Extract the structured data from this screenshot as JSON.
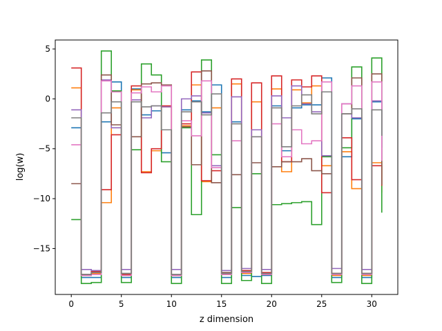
{
  "chart_data": {
    "type": "line",
    "step": "post",
    "title": "",
    "xlabel": "z dimension",
    "ylabel": "log(w)",
    "xlim": [
      -1.6,
      32.6
    ],
    "ylim": [
      -19.6,
      5.9
    ],
    "xticks": [
      0,
      5,
      10,
      15,
      20,
      25,
      30
    ],
    "yticks": [
      5,
      0,
      -5,
      -10,
      -15
    ],
    "legend": "none",
    "grid": false,
    "x": [
      0,
      1,
      2,
      3,
      4,
      5,
      6,
      7,
      8,
      9,
      10,
      11,
      12,
      13,
      14,
      15,
      16,
      17,
      18,
      19,
      20,
      21,
      22,
      23,
      24,
      25,
      26,
      27,
      28,
      29,
      30,
      31
    ],
    "series": [
      {
        "color": "#1f77b4",
        "values": [
          -2.9,
          -17.9,
          -17.9,
          -2.3,
          1.7,
          -17.9,
          1.0,
          -1.6,
          -1.2,
          -5.4,
          -17.9,
          -1.1,
          -0.2,
          -1.3,
          1.4,
          -17.9,
          -2.3,
          -17.7,
          -17.8,
          -17.7,
          -0.7,
          -5.2,
          -0.9,
          -0.6,
          -0.6,
          2.1,
          -17.9,
          -5.8,
          -2.0,
          -17.9,
          -0.3,
          -4.9
        ]
      },
      {
        "color": "#ff7f0e",
        "values": [
          1.1,
          -17.7,
          -17.5,
          -10.4,
          -0.9,
          -17.7,
          0.9,
          -7.3,
          -5.2,
          -0.8,
          -17.7,
          -2.7,
          1.4,
          -8.3,
          -0.9,
          -17.6,
          1.5,
          -17.5,
          -0.3,
          -17.6,
          1.0,
          -7.3,
          0.9,
          -0.4,
          1.3,
          -6.7,
          -17.7,
          -5.3,
          -9.0,
          -17.7,
          -6.4,
          -9.4
        ]
      },
      {
        "color": "#2ca02c",
        "values": [
          -12.1,
          -18.5,
          -18.4,
          4.8,
          0.8,
          -18.4,
          -5.1,
          3.5,
          2.4,
          -6.3,
          -18.5,
          -2.9,
          -11.6,
          3.9,
          -5.6,
          -18.5,
          -10.9,
          -18.2,
          -7.5,
          -18.5,
          -10.6,
          -10.5,
          -10.4,
          -10.3,
          -12.6,
          -5.8,
          -18.4,
          -4.9,
          3.2,
          -18.5,
          4.1,
          -11.4
        ]
      },
      {
        "color": "#d62728",
        "values": [
          3.1,
          -17.6,
          -17.3,
          -9.1,
          -3.6,
          -17.6,
          1.3,
          -7.4,
          -5.0,
          -0.7,
          -17.7,
          -2.5,
          2.7,
          -8.2,
          -7.2,
          -17.5,
          2.0,
          -17.2,
          1.6,
          -17.4,
          2.3,
          -6.3,
          1.9,
          1.2,
          2.3,
          -9.4,
          -17.5,
          -3.9,
          -8.1,
          -17.5,
          -6.7,
          -8.7
        ]
      },
      {
        "color": "#9467bd",
        "values": [
          -1.1,
          -17.1,
          -17.2,
          1.9,
          -2.9,
          -17.1,
          -0.1,
          -1.9,
          -0.7,
          -0.8,
          -17.1,
          0.0,
          0.3,
          -1.4,
          -6.7,
          -17.2,
          0.2,
          -17.0,
          -3.1,
          -17.1,
          0.3,
          -1.9,
          1.3,
          -0.5,
          -1.3,
          -5.7,
          -17.0,
          -0.5,
          -1.9,
          -17.1,
          -0.2,
          -6.1
        ]
      },
      {
        "color": "#8c564b",
        "values": [
          -8.5,
          -17.6,
          -17.4,
          2.4,
          -2.6,
          -17.5,
          -3.8,
          1.5,
          1.6,
          1.4,
          -17.6,
          -2.8,
          -6.6,
          2.8,
          -8.4,
          -17.4,
          -7.6,
          -17.3,
          -6.4,
          -17.5,
          -6.8,
          -6.3,
          -6.3,
          -6.0,
          -7.2,
          -7.5,
          -17.5,
          -1.5,
          2.1,
          -17.5,
          2.5,
          -8.6
        ]
      },
      {
        "color": "#e377c2",
        "values": [
          -4.6,
          -17.7,
          -17.6,
          1.8,
          0.7,
          -17.7,
          0.6,
          1.2,
          0.7,
          1.3,
          -17.7,
          -2.2,
          -3.7,
          1.8,
          -6.9,
          -17.6,
          -4.2,
          -17.4,
          -3.8,
          -17.6,
          -2.5,
          -5.8,
          -3.1,
          -4.5,
          -4.2,
          1.7,
          -17.6,
          -0.5,
          1.3,
          -17.6,
          1.7,
          -6.2
        ]
      },
      {
        "color": "#7f7f7f",
        "values": [
          -1.9,
          -17.6,
          -17.4,
          -1.4,
          -0.3,
          -17.5,
          -0.3,
          -0.8,
          -0.7,
          -3.1,
          -17.6,
          -1.3,
          -0.3,
          -1.6,
          0.5,
          -17.5,
          -2.5,
          -17.3,
          -3.8,
          -17.5,
          -0.9,
          -4.8,
          -0.7,
          0.4,
          -1.5,
          0.7,
          -17.5,
          -1.5,
          -1.0,
          -17.5,
          -1.1,
          -3.7
        ]
      }
    ]
  }
}
